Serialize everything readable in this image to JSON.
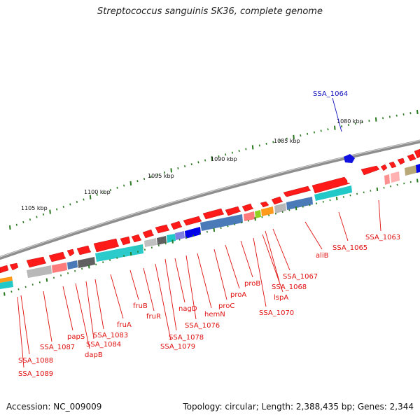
{
  "title": "Streptococcus sanguinis SK36, complete genome",
  "footer": {
    "accession": "Accession: NC_009009",
    "topology": "Topology: circular; Length: 2,388,435 bp; Genes: 2,344"
  },
  "colors": {
    "backbone": "#8a8a8a",
    "forward_gene": "#ff2020",
    "label_red": "#e01010",
    "label_blue": "#1010c0",
    "tick": "#2a7a1f"
  },
  "kbp_labels": [
    "1080 kbp",
    "1085 kbp",
    "1090 kbp",
    "1095 kbp",
    "1100 kbp",
    "1105 kbp"
  ],
  "gene_labels": [
    "SSA_1064",
    "SSA_1063",
    "SSA_1065",
    "aliB",
    "SSA_1067",
    "SSA_1068",
    "lspA",
    "SSA_1070",
    "proB",
    "proA",
    "proC",
    "hemN",
    "SSA_1076",
    "nagD",
    "SSA_1078",
    "SSA_1079",
    "fruR",
    "fruB",
    "fruA",
    "SSA_1083",
    "SSA_1084",
    "dapB",
    "papS",
    "SSA_1087",
    "SSA_1088",
    "SSA_1089"
  ]
}
